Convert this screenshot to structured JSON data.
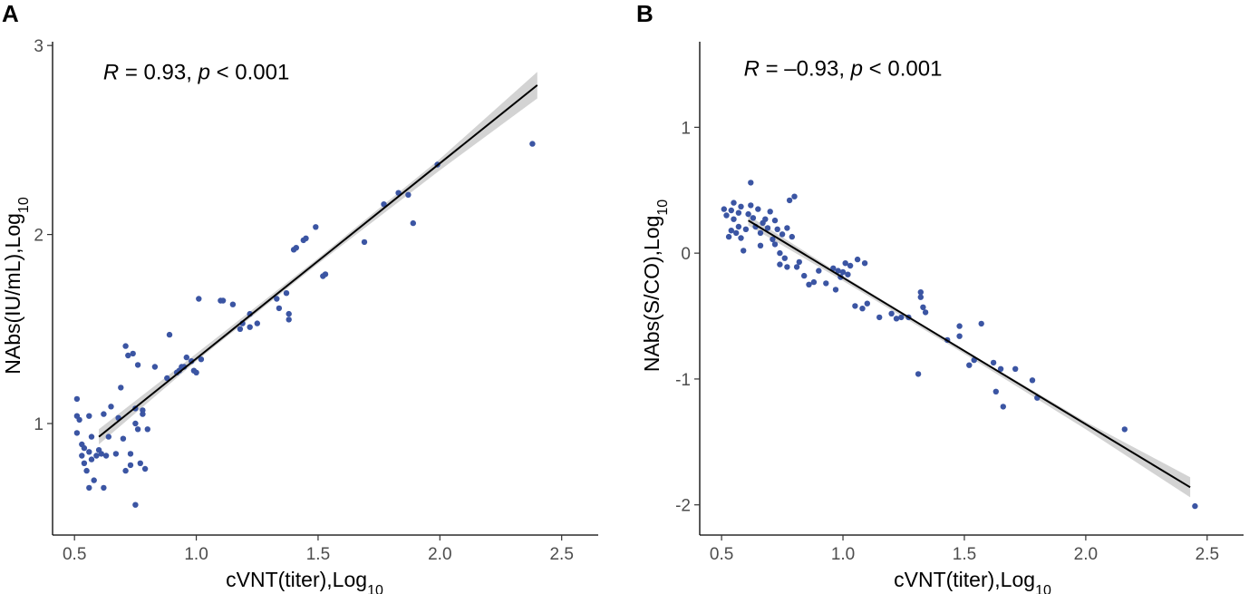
{
  "chart_data": [
    {
      "type": "scatter",
      "panel_label": "A",
      "xlabel": "cVNT(titer),Log",
      "xlabel_sub": "10",
      "ylabel": "NAbs(IU/mL),Log",
      "ylabel_sub": "10",
      "xlim": [
        0.41,
        2.65
      ],
      "ylim": [
        0.41,
        3.02
      ],
      "xticks": [
        0.5,
        1.0,
        1.5,
        2.0,
        2.5
      ],
      "xtick_labels": [
        "0.5",
        "1.0",
        "1.5",
        "2.0",
        "2.5"
      ],
      "yticks": [
        1,
        2,
        3
      ],
      "ytick_labels": [
        "1",
        "2",
        "3"
      ],
      "annotation": {
        "r_symbol": "R",
        "r_text": " = 0.93, ",
        "p_symbol": "p",
        "p_text": " < 0.001"
      },
      "annotation_at": [
        1.0,
        2.82
      ],
      "point_color": "#3b55a3",
      "points": [
        [
          0.51,
          1.13
        ],
        [
          0.51,
          1.04
        ],
        [
          0.51,
          0.95
        ],
        [
          0.52,
          1.02
        ],
        [
          0.53,
          0.89
        ],
        [
          0.53,
          0.83
        ],
        [
          0.54,
          0.87
        ],
        [
          0.54,
          0.79
        ],
        [
          0.55,
          0.75
        ],
        [
          0.56,
          1.04
        ],
        [
          0.56,
          0.85
        ],
        [
          0.56,
          0.66
        ],
        [
          0.57,
          0.93
        ],
        [
          0.57,
          0.81
        ],
        [
          0.58,
          0.7
        ],
        [
          0.59,
          0.83
        ],
        [
          0.6,
          0.86
        ],
        [
          0.61,
          0.84
        ],
        [
          0.62,
          1.05
        ],
        [
          0.62,
          0.66
        ],
        [
          0.63,
          0.83
        ],
        [
          0.64,
          0.93
        ],
        [
          0.65,
          1.09
        ],
        [
          0.67,
          0.84
        ],
        [
          0.68,
          1.03
        ],
        [
          0.69,
          1.19
        ],
        [
          0.7,
          0.92
        ],
        [
          0.71,
          1.41
        ],
        [
          0.71,
          0.75
        ],
        [
          0.72,
          1.36
        ],
        [
          0.73,
          0.78
        ],
        [
          0.73,
          0.84
        ],
        [
          0.74,
          1.37
        ],
        [
          0.75,
          1.08
        ],
        [
          0.75,
          1.0
        ],
        [
          0.75,
          0.57
        ],
        [
          0.76,
          1.31
        ],
        [
          0.76,
          0.97
        ],
        [
          0.77,
          0.79
        ],
        [
          0.78,
          1.07
        ],
        [
          0.78,
          1.05
        ],
        [
          0.79,
          0.76
        ],
        [
          0.8,
          0.97
        ],
        [
          0.83,
          1.3
        ],
        [
          0.88,
          1.24
        ],
        [
          0.89,
          1.47
        ],
        [
          0.92,
          1.27
        ],
        [
          0.93,
          1.28
        ],
        [
          0.94,
          1.3
        ],
        [
          0.95,
          1.3
        ],
        [
          0.96,
          1.35
        ],
        [
          0.98,
          1.33
        ],
        [
          0.99,
          1.28
        ],
        [
          1.0,
          1.27
        ],
        [
          1.01,
          1.66
        ],
        [
          1.02,
          1.34
        ],
        [
          1.1,
          1.65
        ],
        [
          1.11,
          1.65
        ],
        [
          1.15,
          1.63
        ],
        [
          1.18,
          1.5
        ],
        [
          1.19,
          1.53
        ],
        [
          1.22,
          1.58
        ],
        [
          1.22,
          1.51
        ],
        [
          1.25,
          1.53
        ],
        [
          1.33,
          1.66
        ],
        [
          1.34,
          1.61
        ],
        [
          1.37,
          1.69
        ],
        [
          1.38,
          1.55
        ],
        [
          1.38,
          1.58
        ],
        [
          1.4,
          1.92
        ],
        [
          1.41,
          1.93
        ],
        [
          1.44,
          1.97
        ],
        [
          1.45,
          1.98
        ],
        [
          1.49,
          2.04
        ],
        [
          1.52,
          1.78
        ],
        [
          1.53,
          1.79
        ],
        [
          1.69,
          1.96
        ],
        [
          1.77,
          2.16
        ],
        [
          1.83,
          2.22
        ],
        [
          1.87,
          2.21
        ],
        [
          1.89,
          2.06
        ],
        [
          1.99,
          2.37
        ],
        [
          2.38,
          2.48
        ]
      ],
      "fit_line": {
        "x": [
          0.6,
          2.4
        ],
        "y": [
          0.93,
          2.79
        ]
      },
      "ci_band": {
        "x": [
          0.6,
          1.0,
          1.5,
          2.0,
          2.4
        ],
        "lower": [
          0.89,
          1.33,
          1.845,
          2.34,
          2.72
        ],
        "upper": [
          0.97,
          1.37,
          1.875,
          2.4,
          2.86
        ]
      }
    },
    {
      "type": "scatter",
      "panel_label": "B",
      "xlabel": "cVNT(titer),Log",
      "xlabel_sub": "10",
      "ylabel": "NAbs(S/CO),Log",
      "ylabel_sub": "10",
      "xlim": [
        0.41,
        2.65
      ],
      "ylim": [
        -2.24,
        1.68
      ],
      "xticks": [
        0.5,
        1.0,
        1.5,
        2.0,
        2.5
      ],
      "xtick_labels": [
        "0.5",
        "1.0",
        "1.5",
        "2.0",
        "2.5"
      ],
      "yticks": [
        -2,
        -1,
        0,
        1
      ],
      "ytick_labels": [
        "-2",
        "-1",
        "0",
        "1"
      ],
      "annotation": {
        "r_symbol": "R",
        "r_text": " = –0.93, ",
        "p_symbol": "p",
        "p_text": " < 0.001"
      },
      "annotation_at": [
        1.0,
        1.41
      ],
      "point_color": "#3b55a3",
      "points": [
        [
          0.51,
          0.35
        ],
        [
          0.52,
          0.3
        ],
        [
          0.53,
          0.13
        ],
        [
          0.54,
          0.34
        ],
        [
          0.54,
          0.18
        ],
        [
          0.55,
          0.4
        ],
        [
          0.55,
          0.27
        ],
        [
          0.56,
          0.16
        ],
        [
          0.57,
          0.32
        ],
        [
          0.57,
          0.21
        ],
        [
          0.58,
          0.37
        ],
        [
          0.58,
          0.12
        ],
        [
          0.59,
          0.02
        ],
        [
          0.6,
          0.19
        ],
        [
          0.61,
          0.31
        ],
        [
          0.62,
          0.56
        ],
        [
          0.62,
          0.38
        ],
        [
          0.63,
          0.28
        ],
        [
          0.64,
          0.21
        ],
        [
          0.65,
          0.35
        ],
        [
          0.66,
          0.16
        ],
        [
          0.66,
          0.06
        ],
        [
          0.67,
          0.24
        ],
        [
          0.68,
          0.27
        ],
        [
          0.69,
          0.2
        ],
        [
          0.7,
          0.33
        ],
        [
          0.71,
          0.11
        ],
        [
          0.72,
          0.26
        ],
        [
          0.72,
          0.07
        ],
        [
          0.73,
          0.19
        ],
        [
          0.74,
          0.0
        ],
        [
          0.74,
          -0.09
        ],
        [
          0.75,
          0.15
        ],
        [
          0.76,
          -0.04
        ],
        [
          0.77,
          0.2
        ],
        [
          0.77,
          -0.11
        ],
        [
          0.78,
          0.42
        ],
        [
          0.79,
          0.13
        ],
        [
          0.8,
          0.45
        ],
        [
          0.81,
          -0.11
        ],
        [
          0.82,
          -0.07
        ],
        [
          0.84,
          -0.18
        ],
        [
          0.86,
          -0.25
        ],
        [
          0.88,
          -0.23
        ],
        [
          0.9,
          -0.14
        ],
        [
          0.93,
          -0.24
        ],
        [
          0.96,
          -0.12
        ],
        [
          0.97,
          -0.29
        ],
        [
          0.98,
          -0.14
        ],
        [
          0.99,
          -0.19
        ],
        [
          1.0,
          -0.15
        ],
        [
          1.01,
          -0.08
        ],
        [
          1.02,
          -0.17
        ],
        [
          1.03,
          -0.1
        ],
        [
          1.05,
          -0.42
        ],
        [
          1.06,
          -0.05
        ],
        [
          1.08,
          -0.44
        ],
        [
          1.09,
          -0.08
        ],
        [
          1.1,
          -0.4
        ],
        [
          1.15,
          -0.51
        ],
        [
          1.2,
          -0.48
        ],
        [
          1.22,
          -0.52
        ],
        [
          1.24,
          -0.51
        ],
        [
          1.27,
          -0.51
        ],
        [
          1.31,
          -0.96
        ],
        [
          1.32,
          -0.31
        ],
        [
          1.32,
          -0.35
        ],
        [
          1.33,
          -0.43
        ],
        [
          1.34,
          -0.47
        ],
        [
          1.43,
          -0.69
        ],
        [
          1.48,
          -0.58
        ],
        [
          1.48,
          -0.66
        ],
        [
          1.52,
          -0.89
        ],
        [
          1.54,
          -0.85
        ],
        [
          1.57,
          -0.56
        ],
        [
          1.62,
          -0.87
        ],
        [
          1.63,
          -1.1
        ],
        [
          1.65,
          -0.92
        ],
        [
          1.66,
          -1.22
        ],
        [
          1.71,
          -0.92
        ],
        [
          1.78,
          -1.01
        ],
        [
          1.8,
          -1.15
        ],
        [
          2.16,
          -1.4
        ],
        [
          2.45,
          -2.01
        ]
      ],
      "fit_line": {
        "x": [
          0.61,
          2.43
        ],
        "y": [
          0.26,
          -1.86
        ]
      },
      "ci_band": {
        "x": [
          0.61,
          1.0,
          1.5,
          2.0,
          2.43
        ],
        "lower": [
          0.22,
          -0.22,
          -0.8,
          -1.4,
          -1.94
        ],
        "upper": [
          0.3,
          -0.18,
          -0.77,
          -1.34,
          -1.78
        ]
      }
    }
  ]
}
